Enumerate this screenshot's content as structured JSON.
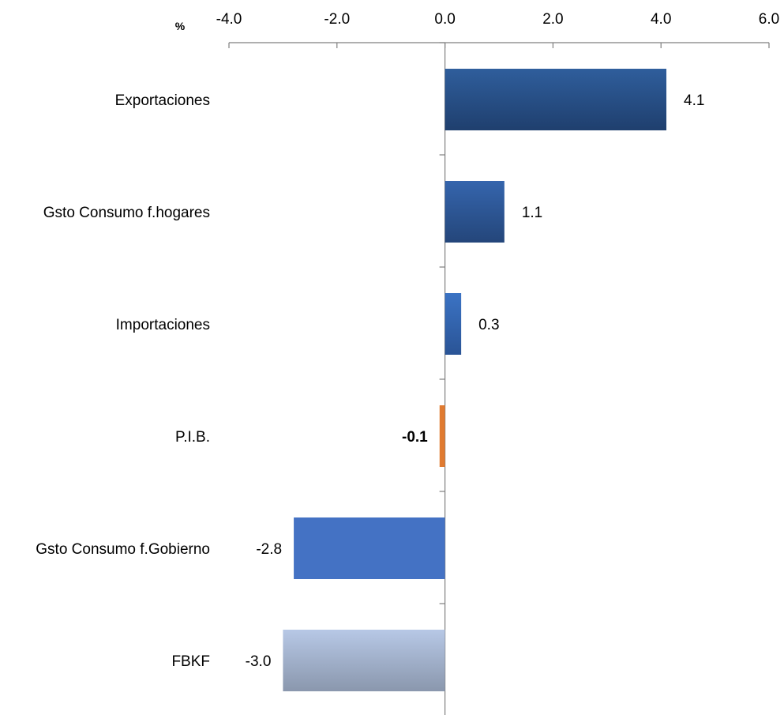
{
  "chart_data": {
    "type": "bar",
    "orientation": "horizontal",
    "unit": "%",
    "categories": [
      "Exportaciones",
      "Gsto Consumo f.hogares",
      "Importaciones",
      "P.I.B.",
      "Gsto Consumo f.Gobierno",
      "FBKF"
    ],
    "values": [
      4.1,
      1.1,
      0.3,
      -0.1,
      -2.8,
      -3.0
    ],
    "value_labels": [
      "4.1",
      "1.1",
      "0.3",
      "-0.1",
      "-2.8",
      "-3.0"
    ],
    "highlight_bold": [
      false,
      false,
      false,
      true,
      false,
      false
    ],
    "xlim": [
      -4.0,
      6.0
    ],
    "xticks": [
      -4.0,
      -2.0,
      0.0,
      2.0,
      4.0,
      6.0
    ],
    "xtick_labels": [
      "-4.0",
      "-2.0",
      "0.0",
      "2.0",
      "4.0",
      "6.0"
    ],
    "axis_position": "top",
    "grid": false,
    "bar_colors": {
      "Exportaciones": [
        "#2f5e9c",
        "#1f3f6e"
      ],
      "Gsto Consumo f.hogares": [
        "#3565ad",
        "#24467a"
      ],
      "Importaciones": [
        "#3b73c4",
        "#2a5496"
      ],
      "P.I.B.": [
        "#e07a30",
        "#e07a30"
      ],
      "Gsto Consumo f.Gobierno": [
        "#4472c4",
        "#4472c4"
      ],
      "FBKF": [
        "#b7c8e6",
        "#8a97ad"
      ]
    }
  }
}
